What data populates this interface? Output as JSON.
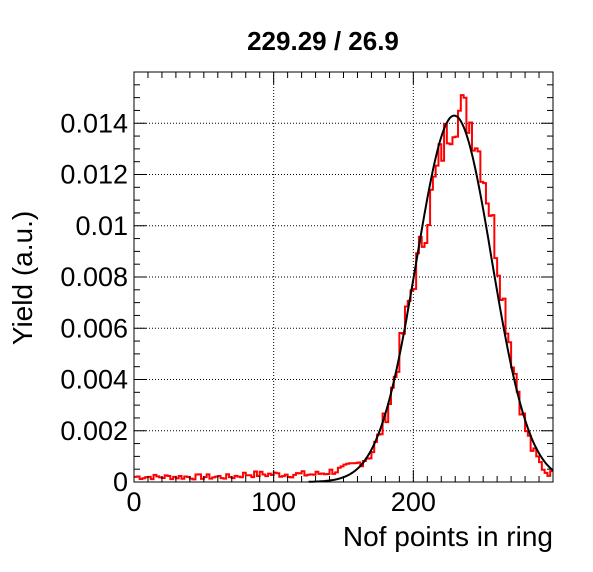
{
  "chart_data": {
    "type": "line",
    "title": "229.29 / 26.9",
    "xlabel": "Nof points in ring",
    "ylabel": "Yield (a.u.)",
    "xlim": [
      0,
      300
    ],
    "ylim": [
      0,
      0.016
    ],
    "grid": true,
    "legend": "none",
    "x_ticks": [
      {
        "value": 0,
        "label": "0"
      },
      {
        "value": 100,
        "label": "100"
      },
      {
        "value": 200,
        "label": "200"
      }
    ],
    "y_ticks": [
      {
        "value": 0,
        "label": "0"
      },
      {
        "value": 0.002,
        "label": "0.002"
      },
      {
        "value": 0.004,
        "label": "0.004"
      },
      {
        "value": 0.006,
        "label": "0.006"
      },
      {
        "value": 0.008,
        "label": "0.008"
      },
      {
        "value": 0.01,
        "label": "0.01"
      },
      {
        "value": 0.012,
        "label": "0.012"
      },
      {
        "value": 0.014,
        "label": "0.014"
      }
    ],
    "series": [
      {
        "kind": "histogram",
        "color": "#ff0000",
        "x": [
          0,
          10,
          20,
          30,
          40,
          50,
          60,
          70,
          80,
          90,
          100,
          110,
          120,
          130,
          140,
          150,
          160,
          170,
          175,
          180,
          185,
          190,
          195,
          200,
          205,
          210,
          215,
          220,
          225,
          230,
          235,
          240,
          245,
          250,
          255,
          260,
          265,
          270,
          275,
          280,
          285,
          290,
          295,
          300
        ],
        "y": [
          0.0002,
          0.0002,
          0.0002,
          0.0002,
          0.0002,
          0.0002,
          0.0002,
          0.0002,
          0.0003,
          0.0003,
          0.0003,
          0.0003,
          0.0003,
          0.0003,
          0.0004,
          0.0005,
          0.0007,
          0.0011,
          0.0017,
          0.0025,
          0.0036,
          0.005,
          0.0064,
          0.0078,
          0.009,
          0.0103,
          0.0116,
          0.0128,
          0.0138,
          0.0143,
          0.0145,
          0.0142,
          0.0134,
          0.0122,
          0.0107,
          0.0089,
          0.007,
          0.0052,
          0.0036,
          0.0022,
          0.0013,
          0.0008,
          0.0004,
          0.0003
        ]
      },
      {
        "kind": "fit",
        "color": "#000000",
        "function": "gaussian",
        "mean": 229.29,
        "sigma": 26.9,
        "amplitude": 0.0143,
        "x_start": 125,
        "x_end": 300
      }
    ]
  }
}
